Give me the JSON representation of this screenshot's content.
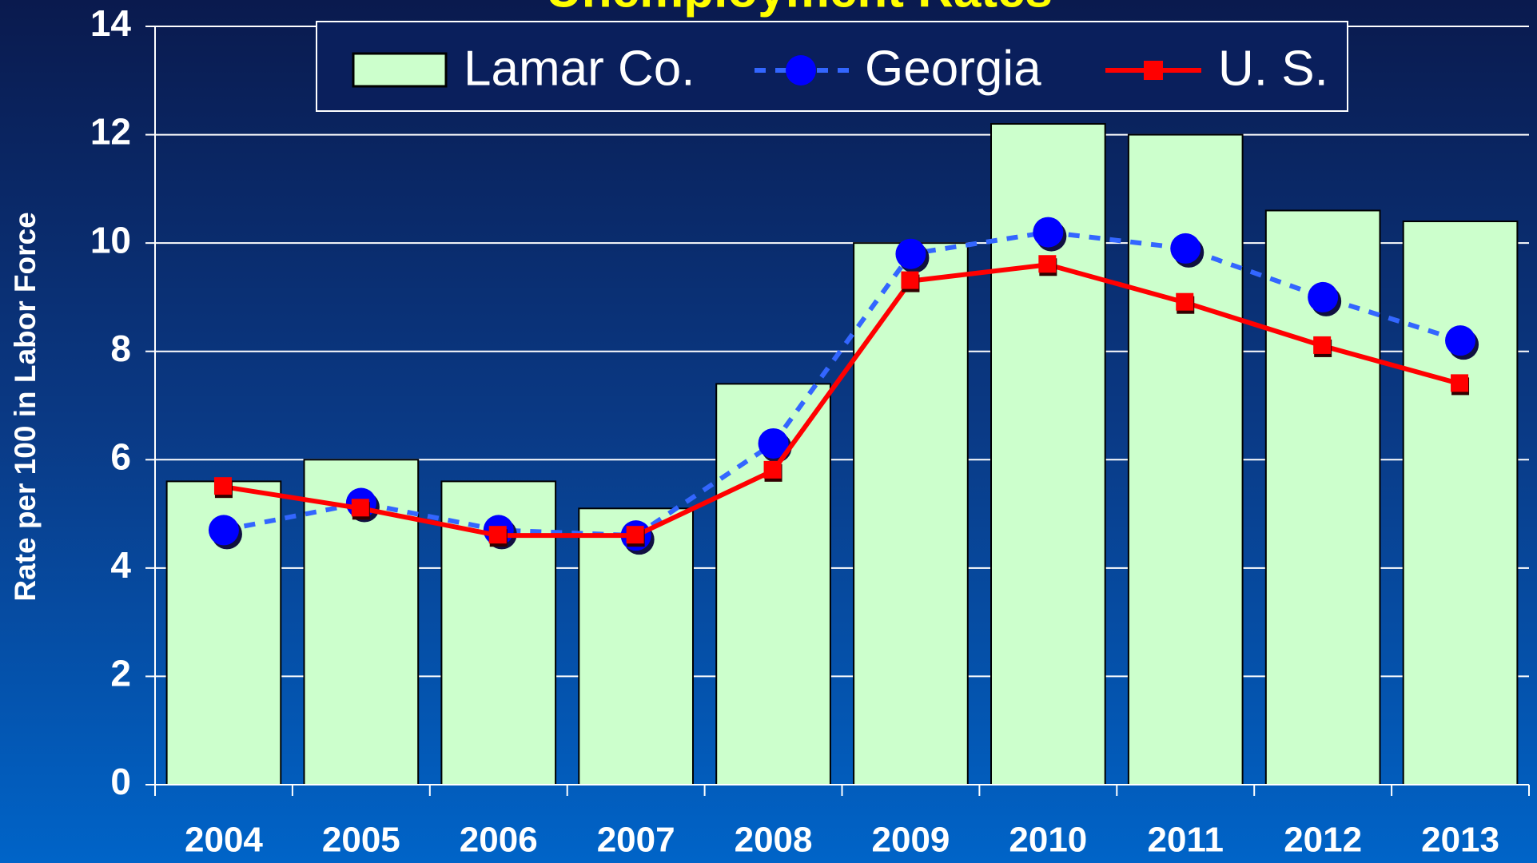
{
  "chart_data": {
    "type": "bar",
    "title": "Unemployment Rates",
    "y_label": "Rate per 100 in Labor Force",
    "categories": [
      "2004",
      "2005",
      "2006",
      "2007",
      "2008",
      "2009",
      "2010",
      "2011",
      "2012",
      "2013"
    ],
    "series": [
      {
        "name": "Lamar Co.",
        "type": "bar",
        "color": "#ccffcc",
        "values": [
          5.6,
          6.0,
          5.6,
          5.1,
          7.4,
          10.0,
          12.2,
          12.0,
          10.6,
          10.4
        ]
      },
      {
        "name": "Georgia",
        "type": "line",
        "color": "#0000ff",
        "values": [
          4.7,
          5.2,
          4.7,
          4.6,
          6.3,
          9.8,
          10.2,
          9.9,
          9.0,
          8.2
        ]
      },
      {
        "name": "U. S.",
        "type": "line",
        "color": "#ff0000",
        "values": [
          5.5,
          5.1,
          4.6,
          4.6,
          5.8,
          9.3,
          9.6,
          8.9,
          8.1,
          7.4
        ]
      }
    ],
    "ylim": [
      0,
      14
    ],
    "yticks": [
      0,
      2,
      4,
      6,
      8,
      10,
      12,
      14
    ],
    "grid": true,
    "legend": "top"
  }
}
